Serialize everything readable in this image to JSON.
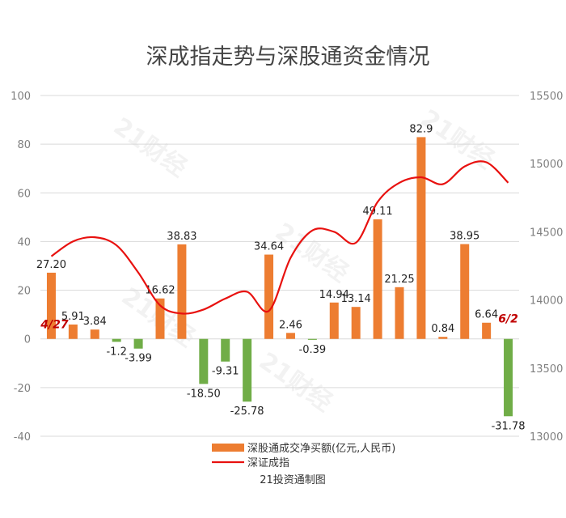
{
  "chart_data": {
    "type": "bar+line",
    "title": "深成指走势与深股通资金情况",
    "credit": "21投资通制图",
    "watermark": "21财经",
    "left_axis": {
      "min": -40,
      "max": 100,
      "ticks": [
        100,
        80,
        60,
        40,
        20,
        0,
        -20,
        -40
      ]
    },
    "right_axis": {
      "min": 13000,
      "max": 15500,
      "ticks": [
        15500,
        15000,
        14500,
        14000,
        13500,
        13000
      ]
    },
    "bar_series": {
      "name": "深股通成交净买额(亿元,人民币)",
      "positive_color": "#ED7D31",
      "negative_color": "#70AD47",
      "values": [
        27.2,
        5.91,
        3.84,
        -1.2,
        -3.99,
        16.62,
        38.83,
        -18.5,
        -9.31,
        -25.78,
        34.64,
        2.46,
        -0.39,
        14.94,
        13.14,
        49.11,
        21.25,
        82.9,
        0.84,
        38.95,
        6.64,
        -31.78
      ],
      "labels": [
        "27.20",
        "5.91",
        "3.84",
        "-1.2",
        "-3.99",
        "16.62",
        "38.83",
        "-18.50",
        "-9.31",
        "-25.78",
        "34.64",
        "2.46",
        "-0.39",
        "14.94",
        "13.14",
        "49.11",
        "21.25",
        "82.9",
        "0.84",
        "38.95",
        "6.64",
        "-31.78"
      ]
    },
    "line_series": {
      "name": "深证成指",
      "color": "#E8110F",
      "values": [
        14320,
        14430,
        14460,
        14400,
        14200,
        13960,
        13900,
        13930,
        14010,
        14060,
        13920,
        14310,
        14510,
        14500,
        14420,
        14720,
        14860,
        14900,
        14850,
        14980,
        15010,
        14860
      ]
    },
    "annotations": {
      "start": "4/27",
      "end": "6/2"
    },
    "legend_position": "bottom",
    "grid": "horizontal"
  }
}
